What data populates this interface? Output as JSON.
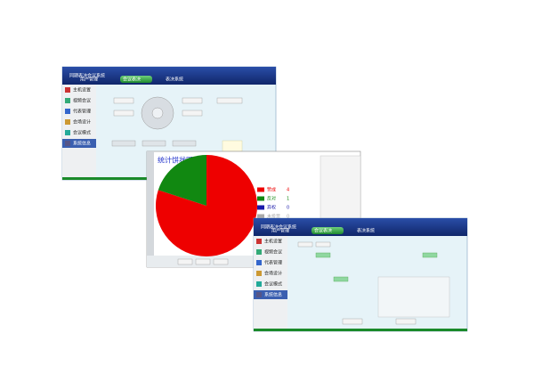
{
  "window_back": {
    "app_name": "同期表决会议系统",
    "tabs": [
      "用户管理",
      "会议表决",
      "表决系统"
    ],
    "menu": [
      "主机设置",
      "视频会议",
      "代表管理",
      "会场设计",
      "会议模式",
      "系统信息"
    ]
  },
  "pie_window": {
    "title": "统计饼状图",
    "items": [
      {
        "label": "赞成",
        "value": 4,
        "color": "#ee0000"
      },
      {
        "label": "反对",
        "value": 1,
        "color": "#118811"
      },
      {
        "label": "弃权",
        "value": 0,
        "color": "#1a1aaa"
      },
      {
        "label": "未投票",
        "value": 0,
        "color": "#aaaaaa"
      }
    ]
  },
  "window_front": {
    "app_name": "同期表决会议系统",
    "tabs": [
      "用户管理",
      "会议表决",
      "表决系统"
    ],
    "menu": [
      "主机设置",
      "视频会议",
      "代表管理",
      "会场设计",
      "会议模式",
      "系统信息"
    ]
  }
}
